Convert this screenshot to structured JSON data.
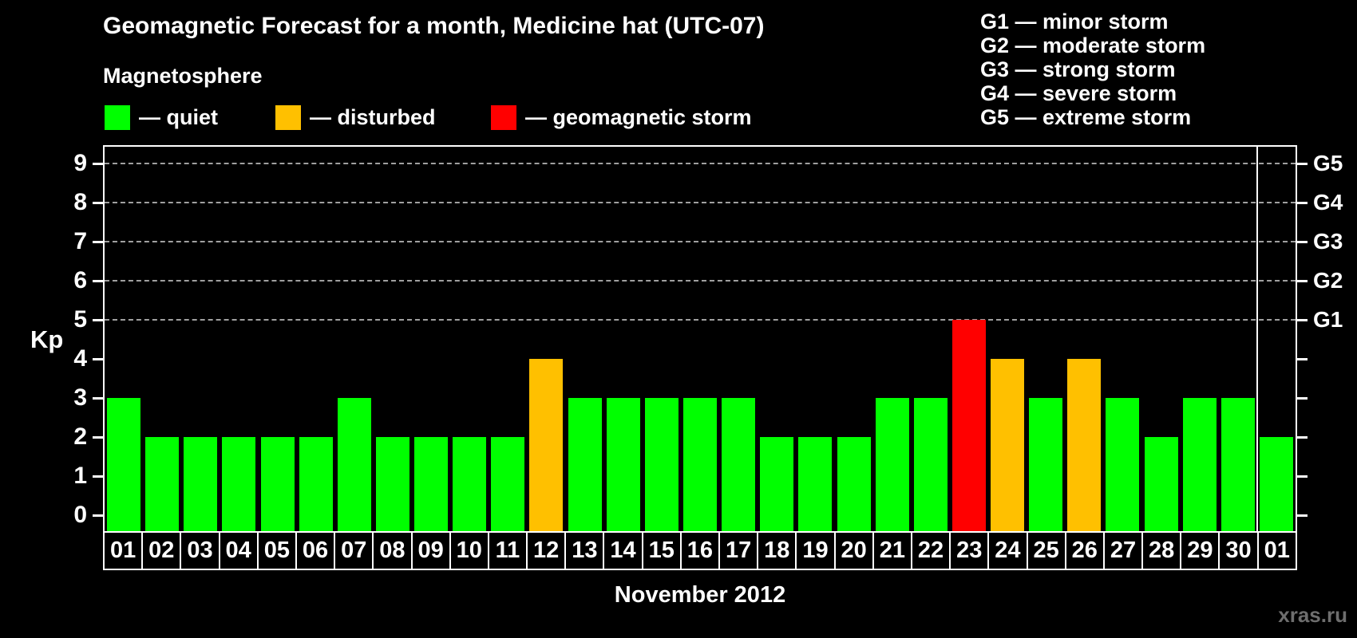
{
  "title": "Geomagnetic Forecast for a month, Medicine hat (UTC-07)",
  "watermark": "xras.ru",
  "legend": {
    "title": "Magnetosphere",
    "items": [
      {
        "key": "quiet",
        "label": "— quiet",
        "color": "#00ff00"
      },
      {
        "key": "disturbed",
        "label": "— disturbed",
        "color": "#ffc000"
      },
      {
        "key": "storm",
        "label": "— geomagnetic storm",
        "color": "#ff0000"
      }
    ]
  },
  "g_legend": [
    "G1 — minor storm",
    "G2 — moderate storm",
    "G3 — strong storm",
    "G4 — severe storm",
    "G5 — extreme storm"
  ],
  "chart_data": {
    "type": "bar",
    "title": "Geomagnetic Forecast for a month, Medicine hat (UTC-07)",
    "xlabel": "November 2012",
    "ylabel": "Kp",
    "ylim": [
      -0.45,
      9.55
    ],
    "yticks": [
      0,
      1,
      2,
      3,
      4,
      5,
      6,
      7,
      8,
      9
    ],
    "gridlines_at": [
      5,
      6,
      7,
      8,
      9
    ],
    "grid": "dashed, only at G-storm levels (Kp 5-9)",
    "legend_position": "top",
    "right_axis_labels": [
      {
        "kp": 5,
        "label": "G1"
      },
      {
        "kp": 6,
        "label": "G2"
      },
      {
        "kp": 7,
        "label": "G3"
      },
      {
        "kp": 8,
        "label": "G4"
      },
      {
        "kp": 9,
        "label": "G5"
      }
    ],
    "categories": [
      "01",
      "02",
      "03",
      "04",
      "05",
      "06",
      "07",
      "08",
      "09",
      "10",
      "11",
      "12",
      "13",
      "14",
      "15",
      "16",
      "17",
      "18",
      "19",
      "20",
      "21",
      "22",
      "23",
      "24",
      "25",
      "26",
      "27",
      "28",
      "29",
      "30",
      "01"
    ],
    "values": [
      3,
      2,
      2,
      2,
      2,
      2,
      3,
      2,
      2,
      2,
      2,
      4,
      3,
      3,
      3,
      3,
      3,
      2,
      2,
      2,
      3,
      3,
      5,
      4,
      3,
      4,
      3,
      2,
      3,
      3,
      2
    ],
    "statuses": [
      "quiet",
      "quiet",
      "quiet",
      "quiet",
      "quiet",
      "quiet",
      "quiet",
      "quiet",
      "quiet",
      "quiet",
      "quiet",
      "disturbed",
      "quiet",
      "quiet",
      "quiet",
      "quiet",
      "quiet",
      "quiet",
      "quiet",
      "quiet",
      "quiet",
      "quiet",
      "storm",
      "disturbed",
      "quiet",
      "disturbed",
      "quiet",
      "quiet",
      "quiet",
      "quiet",
      "quiet"
    ],
    "colors": {
      "quiet": "#00ff00",
      "disturbed": "#ffc000",
      "storm": "#ff0000"
    },
    "month_separator_before_index": 30
  }
}
